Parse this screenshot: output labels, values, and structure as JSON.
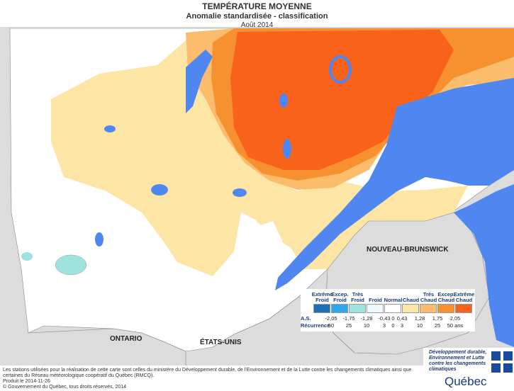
{
  "header": {
    "title": "TEMPÉRATURE MOYENNE",
    "subtitle": "Anomalie standardisée - classification",
    "date": "Août 2014"
  },
  "labels": {
    "new_brunswick": "NOUVEAU-BRUNSWICK",
    "ontario": "ONTARIO",
    "usa": "ÉTATS-UNIS"
  },
  "legend": {
    "classes": [
      {
        "label": "Extrême Froid",
        "color": "#1f6fb8"
      },
      {
        "label": "Excep. Froid",
        "color": "#2ea8e8"
      },
      {
        "label": "Très Froid",
        "color": "#9fe3df"
      },
      {
        "label": "Froid",
        "color": "#eef9fb"
      },
      {
        "label": "Normal",
        "color": "#ffffff"
      },
      {
        "label": "Chaud",
        "color": "#fde5a6"
      },
      {
        "label": "Très Chaud",
        "color": "#fbbd6b"
      },
      {
        "label": "Excep. Chaud",
        "color": "#f7902e"
      },
      {
        "label": "Extrême Chaud",
        "color": "#f8621a"
      }
    ],
    "as_label": "A.S.",
    "as_values": [
      "-2,05",
      "-1,75",
      "-1,28",
      "-0,43",
      "0",
      "0,43",
      "1,28",
      "1,75",
      "2,05"
    ],
    "recurrence_label": "Récurrence",
    "recurrence_values": [
      "50",
      "25",
      "10",
      "3",
      "0",
      "3",
      "10",
      "25",
      "50 ans"
    ]
  },
  "footer": {
    "note": "Les stations utilisées pour la réalisation de cette carte sont celles du ministère du Développement durable, de l'Environnement et de la Lutte contre les changements climatiques ainsi que certaines du Réseau météorologique coopératif du Québec (RMCQ).",
    "produced": "Produit le 2014-11-26",
    "copyright": "© Gouvernement du Québec, tous droits réservés, 2014"
  },
  "logo": {
    "text": "Développement durable, Environnement et Lutte contre les changements climatiques",
    "name": "Québec"
  }
}
